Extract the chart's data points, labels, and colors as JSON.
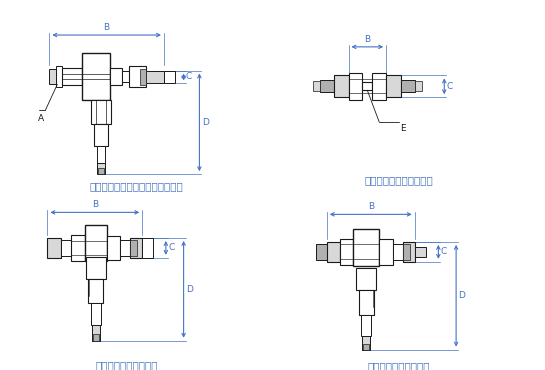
{
  "bg_color": "#ffffff",
  "dim_color": "#4472c4",
  "line_color": "#1a1a1a",
  "gray_fill": "#b0b0b0",
  "light_gray": "#d8d8d8",
  "white_fill": "#ffffff",
  "label_color": "#4472c4",
  "labels": {
    "STL": "ＳＴＬ：スタッドチーズ（Ｌ型）",
    "EU": "ＥＵ：イコールユニオン",
    "EL": "ＥＬ：イコールエルボ",
    "ET": "ＥＴ：イコールチーズ"
  },
  "caption_fontsize": 7.5,
  "dim_fontsize": 7
}
